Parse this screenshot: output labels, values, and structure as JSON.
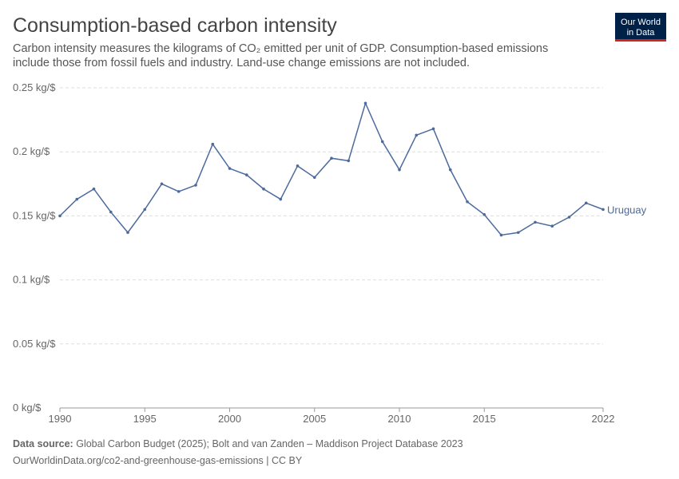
{
  "chart_data": {
    "type": "line",
    "title": "Consumption-based carbon intensity",
    "subtitle": "Carbon intensity measures the kilograms of CO₂ emitted per unit of GDP. Consumption-based emissions include those from fossil fuels and industry. Land-use change emissions are not included.",
    "logo": [
      "Our World",
      "in Data"
    ],
    "source_label": "Data source:",
    "source": "Global Carbon Budget (2025); Bolt and van Zanden – Maddison Project Database 2023",
    "url_line": "OurWorldinData.org/co2-and-greenhouse-gas-emissions | CC BY",
    "x": [
      1990,
      1991,
      1992,
      1993,
      1994,
      1995,
      1996,
      1997,
      1998,
      1999,
      2000,
      2001,
      2002,
      2003,
      2004,
      2005,
      2006,
      2007,
      2008,
      2009,
      2010,
      2011,
      2012,
      2013,
      2014,
      2015,
      2016,
      2017,
      2018,
      2019,
      2020,
      2021,
      2022
    ],
    "series": [
      {
        "name": "Uruguay",
        "color": "#4c6a9c",
        "values": [
          0.15,
          0.163,
          0.171,
          0.153,
          0.137,
          0.155,
          0.175,
          0.169,
          0.174,
          0.206,
          0.187,
          0.182,
          0.171,
          0.163,
          0.189,
          0.18,
          0.195,
          0.193,
          0.238,
          0.208,
          0.186,
          0.213,
          0.218,
          0.186,
          0.161,
          0.151,
          0.135,
          0.137,
          0.145,
          0.142,
          0.149,
          0.16,
          0.155
        ]
      }
    ],
    "xlim": [
      1990,
      2022
    ],
    "xticks": [
      1990,
      1995,
      2000,
      2005,
      2010,
      2015,
      2022
    ],
    "ylim": [
      0,
      0.25
    ],
    "yticks": [
      {
        "value": 0,
        "label": "0 kg/$"
      },
      {
        "value": 0.05,
        "label": "0.05 kg/$"
      },
      {
        "value": 0.1,
        "label": "0.1 kg/$"
      },
      {
        "value": 0.15,
        "label": "0.15 kg/$"
      },
      {
        "value": 0.2,
        "label": "0.2 kg/$"
      },
      {
        "value": 0.25,
        "label": "0.25 kg/$"
      }
    ],
    "grid": true
  }
}
